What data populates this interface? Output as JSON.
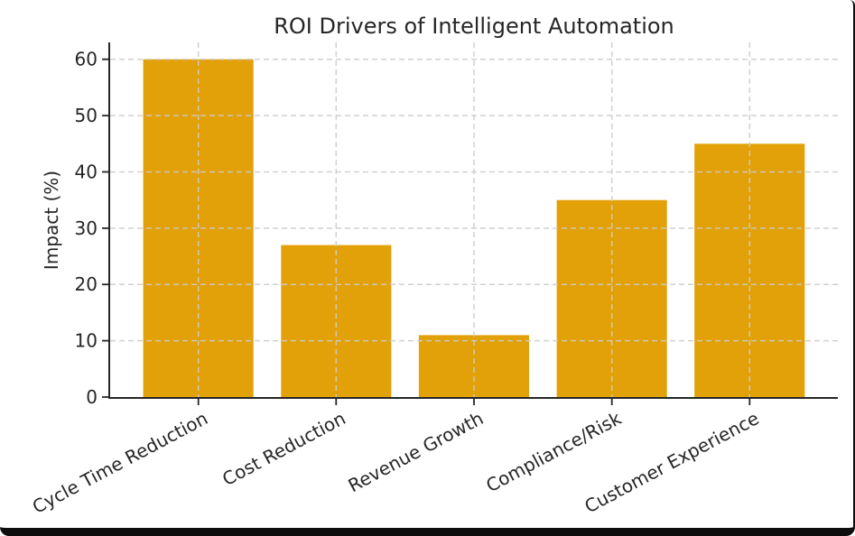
{
  "window": {
    "background": "#ffffff",
    "frame_color": "#0d0d0d"
  },
  "chart_data": {
    "type": "bar",
    "title": "ROI Drivers of Intelligent Automation",
    "categories": [
      "Cycle Time Reduction",
      "Cost Reduction",
      "Revenue Growth",
      "Compliance/Risk",
      "Customer Experience"
    ],
    "values": [
      60,
      27,
      11,
      35,
      45
    ],
    "xlabel": "",
    "ylabel": "Impact (%)",
    "ylim": [
      0,
      63
    ],
    "yticks": [
      0,
      10,
      20,
      30,
      40,
      50,
      60
    ],
    "x_tick_rotation_deg": 28,
    "bar_color": "#E2A108",
    "grid": {
      "visible": true,
      "style": "dashed",
      "color": "#cccccc",
      "on_top_of_bars": true
    },
    "axis_color": "#262626",
    "text_color": "#262626",
    "legend": "none"
  }
}
